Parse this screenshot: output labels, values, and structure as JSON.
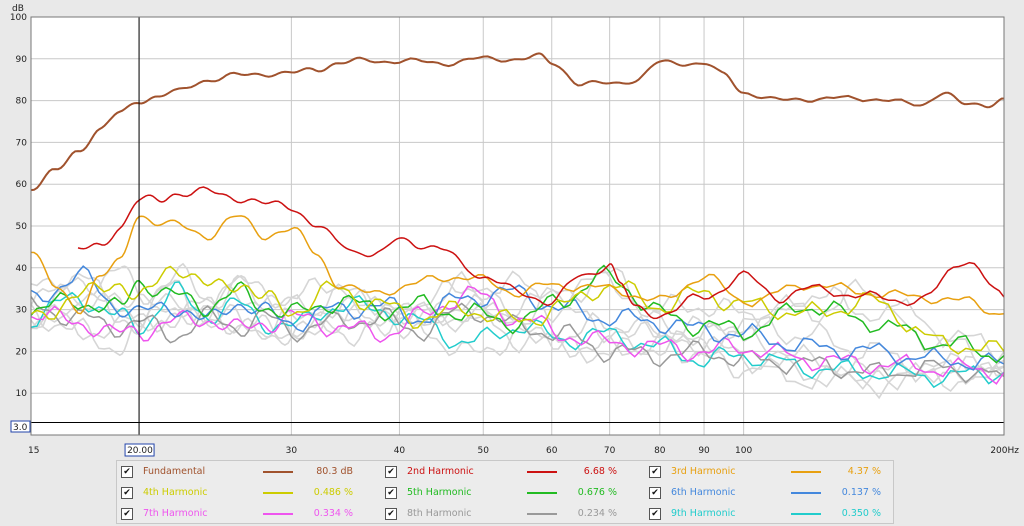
{
  "chart_data": {
    "type": "line",
    "xscale": "log",
    "xlim": [
      15,
      200
    ],
    "ylim": [
      0,
      100
    ],
    "ylabel": "dB",
    "x_ticks": [
      "15",
      "20.00",
      "30",
      "40",
      "50",
      "60",
      "70",
      "80",
      "90",
      "100",
      "200Hz"
    ],
    "y_ticks": [
      "10",
      "20",
      "30",
      "40",
      "50",
      "60",
      "70",
      "80",
      "90",
      "100"
    ],
    "cursor": {
      "x": 20,
      "x_label": "20.00",
      "y": 3,
      "y_label": "3.0"
    },
    "grid": true,
    "series": [
      {
        "name": "Fundamental",
        "color": "#a0522d",
        "value": "80.3 dB",
        "x": [
          15,
          16,
          17,
          18,
          19,
          20,
          21,
          22,
          24,
          26,
          28,
          30,
          32,
          34,
          36,
          40,
          45,
          50,
          55,
          58,
          60,
          65,
          70,
          75,
          80,
          85,
          90,
          95,
          100,
          110,
          120,
          140,
          160,
          170,
          180,
          190,
          200
        ],
        "y": [
          59,
          63,
          68,
          73,
          77,
          80,
          81,
          82,
          85,
          86,
          86.5,
          86.5,
          87.5,
          89,
          89.5,
          89.5,
          89,
          90,
          90,
          90.5,
          89,
          84,
          84,
          85,
          89,
          89,
          89,
          86,
          82,
          80,
          80.5,
          80.5,
          79,
          82,
          79,
          79,
          80.5
        ]
      },
      {
        "name": "2nd Harmonic",
        "color": "#cc1111",
        "value": "6.68 %",
        "x": [
          17,
          18,
          19,
          20,
          21,
          22,
          24,
          26,
          28,
          30,
          32,
          34,
          36,
          38,
          40,
          42,
          45,
          48,
          50,
          55,
          60,
          65,
          70,
          72,
          75,
          80,
          90,
          100,
          110,
          120,
          140,
          160,
          180,
          200
        ],
        "y": [
          44,
          45,
          50,
          56,
          56,
          58,
          58,
          57,
          55,
          55,
          50,
          46,
          44,
          43,
          47,
          46,
          44,
          40,
          38,
          34,
          32,
          38,
          41,
          36,
          30,
          29,
          33,
          38,
          33,
          35,
          33,
          32,
          42,
          33
        ]
      },
      {
        "name": "3rd Harmonic",
        "color": "#e8a010",
        "value": "4.37 %",
        "x": [
          15,
          16,
          17,
          18,
          19,
          20,
          21,
          22,
          24,
          26,
          28,
          30,
          32,
          34,
          36,
          40,
          45,
          50,
          55,
          60,
          70,
          80,
          90,
          100,
          120,
          140,
          160,
          180,
          200
        ],
        "y": [
          45,
          35,
          30,
          38,
          41,
          53,
          51,
          50,
          48,
          52,
          48,
          49,
          44,
          36,
          34,
          35,
          38,
          37,
          34,
          36,
          35,
          32,
          38,
          32,
          36,
          34,
          33,
          32,
          29
        ]
      },
      {
        "name": "4th Harmonic",
        "color": "#cccc00",
        "value": "0.486 %",
        "x": [
          15,
          17,
          19,
          20,
          22,
          24,
          26,
          28,
          30,
          34,
          38,
          42,
          48,
          55,
          62,
          70,
          80,
          90,
          100,
          120,
          140,
          170,
          200
        ],
        "y": [
          28,
          33,
          37,
          32,
          41,
          35,
          37,
          32,
          30,
          35,
          31,
          28,
          30,
          27,
          31,
          36,
          31,
          34,
          31,
          29,
          32,
          22,
          20
        ]
      },
      {
        "name": "5th Harmonic",
        "color": "#22bb22",
        "value": "0.676 %",
        "x": [
          15,
          17,
          19,
          20,
          22,
          24,
          26,
          28,
          30,
          34,
          38,
          42,
          48,
          55,
          62,
          70,
          80,
          90,
          100,
          120,
          140,
          170,
          200
        ],
        "y": [
          30,
          32,
          30,
          37,
          33,
          31,
          34,
          31,
          29,
          32,
          30,
          31,
          29,
          27,
          33,
          38,
          29,
          26,
          25,
          31,
          27,
          22,
          19
        ]
      },
      {
        "name": "6th Harmonic",
        "color": "#4488dd",
        "value": "0.137 %",
        "x": [
          15,
          17,
          19,
          20,
          22,
          24,
          26,
          28,
          30,
          34,
          38,
          42,
          48,
          55,
          62,
          70,
          80,
          90,
          100,
          120,
          140,
          170,
          200
        ],
        "y": [
          32,
          38,
          31,
          29,
          31,
          27,
          32,
          29,
          27,
          30,
          31,
          28,
          33,
          34,
          30,
          28,
          27,
          25,
          24,
          21,
          20,
          18,
          17
        ]
      },
      {
        "name": "7th Harmonic",
        "color": "#ee55ee",
        "value": "0.334 %",
        "x": [
          15,
          17,
          19,
          20,
          22,
          24,
          26,
          28,
          30,
          34,
          38,
          42,
          48,
          55,
          62,
          70,
          80,
          90,
          100,
          120,
          140,
          170,
          200
        ],
        "y": [
          29,
          27,
          24,
          25,
          27,
          28,
          25,
          27,
          28,
          26,
          24,
          28,
          34,
          28,
          24,
          22,
          21,
          20,
          21,
          18,
          17,
          16,
          15
        ]
      },
      {
        "name": "8th Harmonic",
        "color": "#999999",
        "value": "0.234 %",
        "x": [
          15,
          17,
          19,
          20,
          22,
          24,
          26,
          28,
          30,
          34,
          38,
          42,
          48,
          55,
          62,
          70,
          80,
          90,
          100,
          120,
          140,
          170,
          200
        ],
        "y": [
          31,
          28,
          26,
          27,
          24,
          28,
          26,
          28,
          25,
          27,
          28,
          25,
          30,
          26,
          24,
          20,
          19,
          20,
          18,
          17,
          15,
          16,
          14
        ]
      },
      {
        "name": "9th Harmonic",
        "color": "#22cccc",
        "value": "0.350 %",
        "x": [
          15,
          17,
          19,
          20,
          22,
          24,
          26,
          28,
          30,
          34,
          38,
          42,
          48,
          55,
          62,
          70,
          80,
          90,
          100,
          120,
          140,
          170,
          200
        ],
        "y": [
          28,
          33,
          28,
          26,
          34,
          29,
          31,
          27,
          26,
          31,
          30,
          27,
          22,
          26,
          23,
          24,
          21,
          18,
          19,
          16,
          15,
          14,
          15
        ]
      }
    ]
  }
}
